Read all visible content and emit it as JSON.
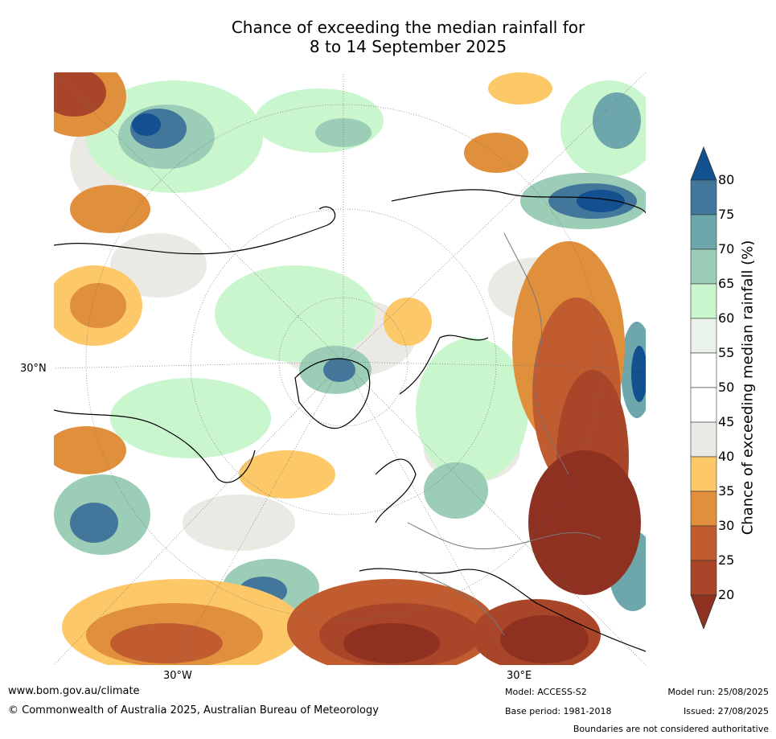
{
  "title": {
    "line1": "Chance of exceeding the median rainfall for",
    "line2": "8 to 14 September 2025"
  },
  "map": {
    "lat_label": "30°N",
    "lon_labels": [
      "30°W",
      "30°E"
    ],
    "legend": {
      "title": "Chance of exceeding median rainfall (%)",
      "ticks": [
        "80",
        "75",
        "70",
        "65",
        "60",
        "55",
        "50",
        "45",
        "40",
        "35",
        "30",
        "25",
        "20"
      ],
      "colors": [
        "#12508f",
        "#42779b",
        "#6da6ab",
        "#9ccdb6",
        "#c9f6cd",
        "#e9f3e9",
        "#ffffff",
        "#ffffff",
        "#ebe9e3",
        "#fdc867",
        "#e0903d",
        "#c05c2f",
        "#a9462a",
        "#8e3120"
      ]
    }
  },
  "footer": {
    "url": "www.bom.gov.au/climate",
    "copyright": "© Commonwealth of Australia 2025, Australian Bureau of Meteorology",
    "model": "Model: ACCESS-S2",
    "base_period": "Base period: 1981-2018",
    "model_run": "Model run: 25/08/2025",
    "issued": "Issued: 27/08/2025",
    "disclaimer": "Boundaries are not considered authoritative"
  }
}
